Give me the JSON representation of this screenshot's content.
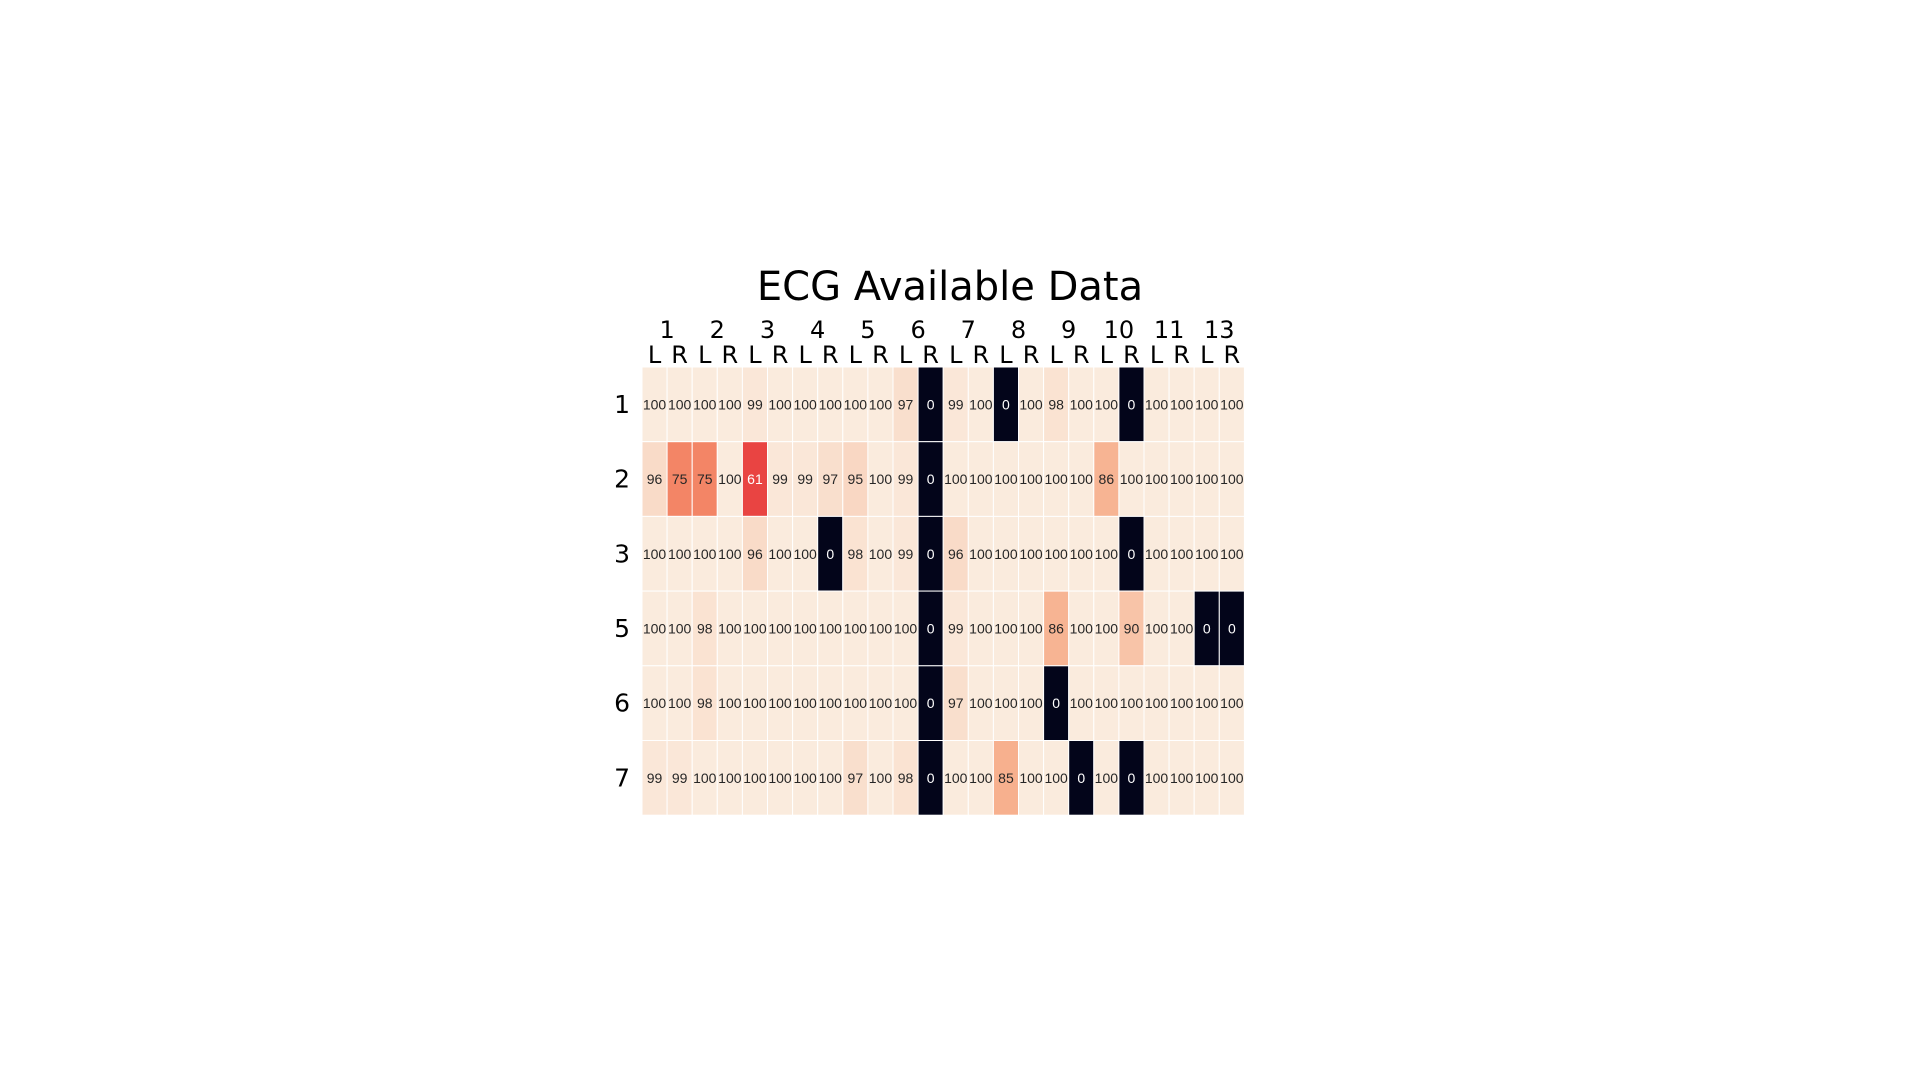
{
  "chart_data": {
    "type": "heatmap",
    "title": "ECG Available Data",
    "column_groups": [
      "1",
      "2",
      "3",
      "4",
      "5",
      "6",
      "7",
      "8",
      "9",
      "10",
      "11",
      "13"
    ],
    "sides": [
      "L",
      "R"
    ],
    "columns": [
      {
        "group": "1",
        "side": "L"
      },
      {
        "group": "1",
        "side": "R"
      },
      {
        "group": "2",
        "side": "L"
      },
      {
        "group": "2",
        "side": "R"
      },
      {
        "group": "3",
        "side": "L"
      },
      {
        "group": "3",
        "side": "R"
      },
      {
        "group": "4",
        "side": "L"
      },
      {
        "group": "4",
        "side": "R"
      },
      {
        "group": "5",
        "side": "L"
      },
      {
        "group": "5",
        "side": "R"
      },
      {
        "group": "6",
        "side": "L"
      },
      {
        "group": "6",
        "side": "R"
      },
      {
        "group": "7",
        "side": "L"
      },
      {
        "group": "7",
        "side": "R"
      },
      {
        "group": "8",
        "side": "L"
      },
      {
        "group": "8",
        "side": "R"
      },
      {
        "group": "9",
        "side": "L"
      },
      {
        "group": "9",
        "side": "R"
      },
      {
        "group": "10",
        "side": "L"
      },
      {
        "group": "10",
        "side": "R"
      },
      {
        "group": "11",
        "side": "L"
      },
      {
        "group": "11",
        "side": "R"
      },
      {
        "group": "13",
        "side": "L"
      },
      {
        "group": "13",
        "side": "R"
      }
    ],
    "rows": [
      "1",
      "2",
      "3",
      "5",
      "6",
      "7"
    ],
    "values": [
      [
        100,
        100,
        100,
        100,
        99,
        100,
        100,
        100,
        100,
        100,
        97,
        0,
        99,
        100,
        0,
        100,
        98,
        100,
        100,
        0,
        100,
        100,
        100,
        100
      ],
      [
        96,
        75,
        75,
        100,
        61,
        99,
        99,
        97,
        95,
        100,
        99,
        0,
        100,
        100,
        100,
        100,
        100,
        100,
        86,
        100,
        100,
        100,
        100,
        100
      ],
      [
        100,
        100,
        100,
        100,
        96,
        100,
        100,
        0,
        98,
        100,
        99,
        0,
        96,
        100,
        100,
        100,
        100,
        100,
        100,
        0,
        100,
        100,
        100,
        100
      ],
      [
        100,
        100,
        98,
        100,
        100,
        100,
        100,
        100,
        100,
        100,
        100,
        0,
        99,
        100,
        100,
        100,
        86,
        100,
        100,
        90,
        100,
        100,
        0,
        0
      ],
      [
        100,
        100,
        98,
        100,
        100,
        100,
        100,
        100,
        100,
        100,
        100,
        0,
        97,
        100,
        100,
        100,
        0,
        100,
        100,
        100,
        100,
        100,
        100,
        100
      ],
      [
        99,
        99,
        100,
        100,
        100,
        100,
        100,
        100,
        97,
        100,
        98,
        0,
        100,
        100,
        85,
        100,
        100,
        0,
        100,
        0,
        100,
        100,
        100,
        100
      ]
    ],
    "value_range": [
      0,
      100
    ],
    "colorscale": [
      "#03051a",
      "#4c1d4b",
      "#a11a5b",
      "#e83f3f",
      "#f69c73",
      "#faebdd"
    ],
    "grid": false
  }
}
